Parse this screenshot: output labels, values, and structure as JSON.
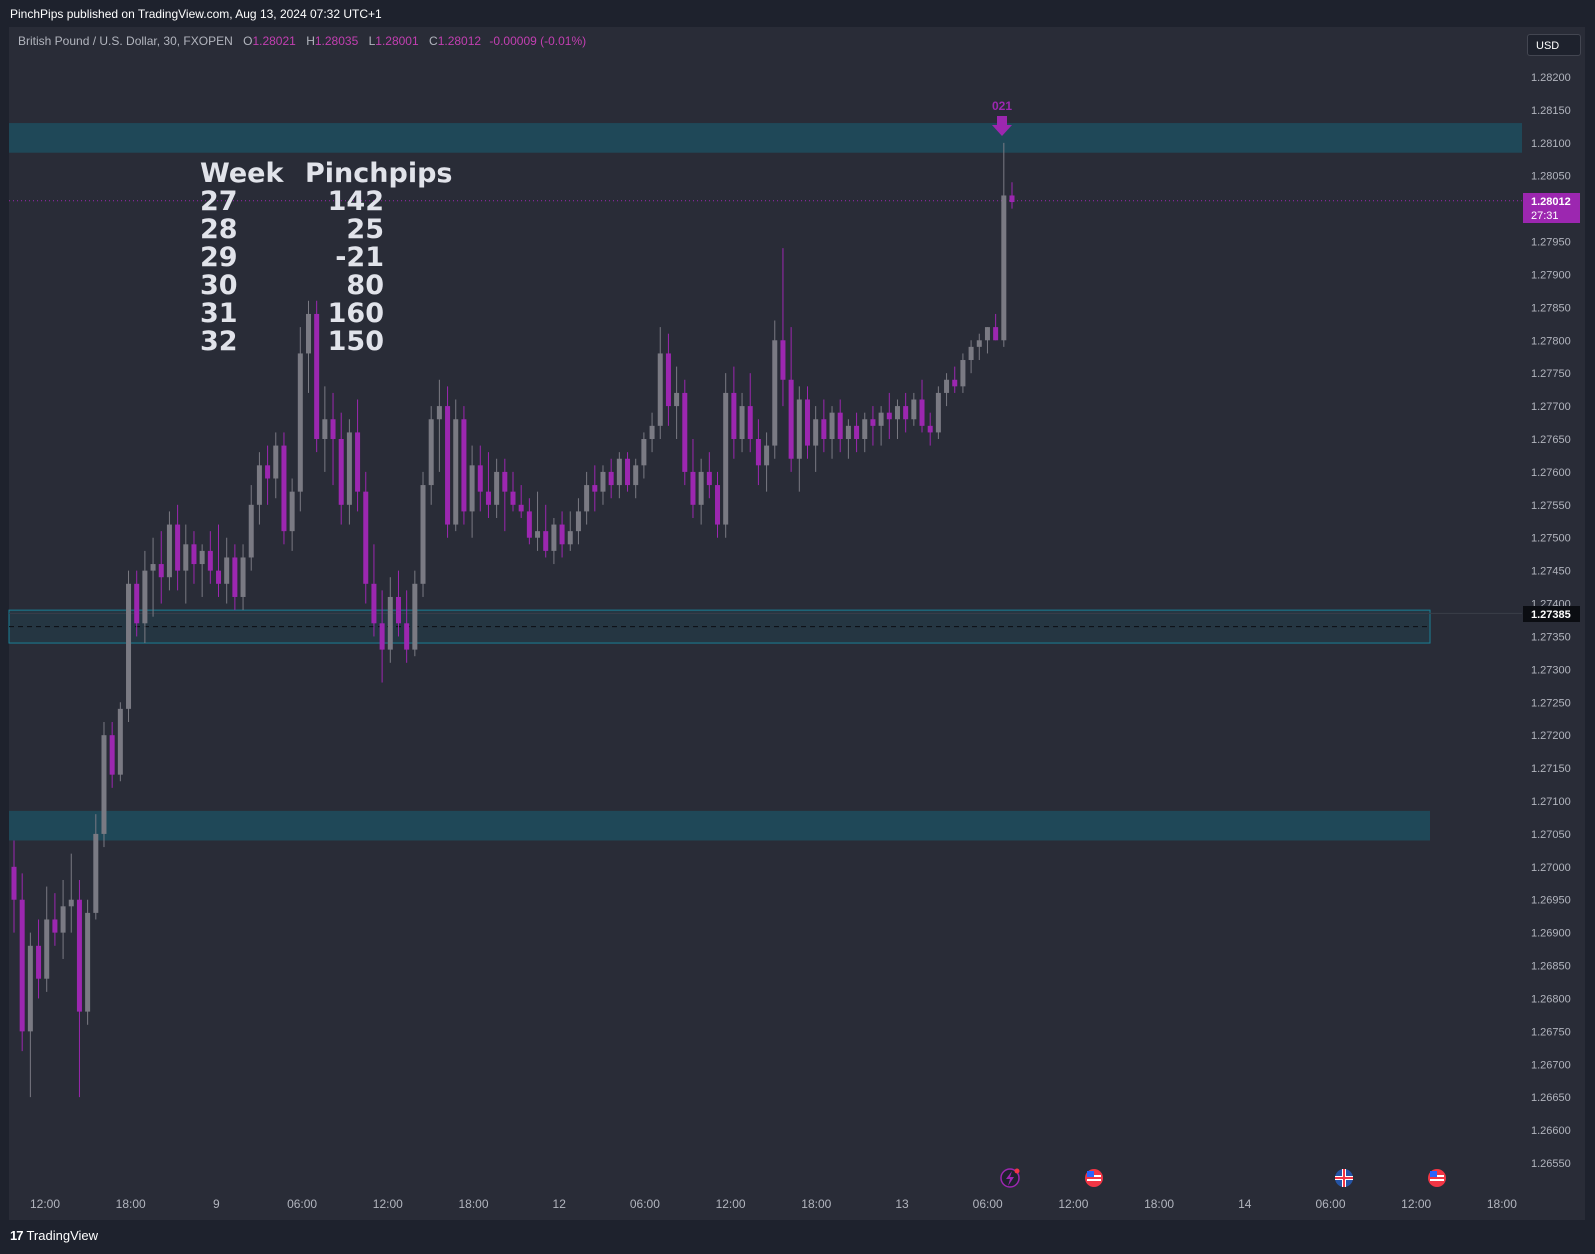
{
  "header": {
    "published": "PinchPips published on TradingView.com, Aug 13, 2024 07:32 UTC+1"
  },
  "legend": {
    "symbol": "British Pound / U.S. Dollar, 30, FXOPEN",
    "open_label": "O",
    "open": "1.28021",
    "high_label": "H",
    "high": "1.28035",
    "low_label": "L",
    "low": "1.28001",
    "close_label": "C",
    "close": "1.28012",
    "change": "-0.00009 (-0.01%)"
  },
  "currency": "USD",
  "table": {
    "headers": [
      "Week",
      "Pinchpips"
    ],
    "rows": [
      [
        "27",
        "142"
      ],
      [
        "28",
        "25"
      ],
      [
        "29",
        "-21"
      ],
      [
        "30",
        "80"
      ],
      [
        "31",
        "160"
      ],
      [
        "32",
        "150"
      ]
    ]
  },
  "marker_label": "021",
  "price_tags": {
    "last": "1.28012",
    "countdown": "27:31",
    "level": "1.27385"
  },
  "footer": {
    "brand": "TradingView"
  },
  "colors": {
    "background": "#292c37",
    "bull": "#7a7a83",
    "bear": "#9c27b0",
    "zone": "#1f4a5a",
    "accent": "#9c27b0"
  },
  "icons": [
    "lightning-event-icon",
    "us-flag-icon",
    "uk-flag-icon",
    "us-flag-icon"
  ],
  "chart_data": {
    "type": "candlestick",
    "title": "British Pound / U.S. Dollar, 30, FXOPEN",
    "ylim": [
      1.2652,
      1.2823
    ],
    "y_ticks": [
      "1.28200",
      "1.28150",
      "1.28100",
      "1.28050",
      "1.27950",
      "1.27900",
      "1.27850",
      "1.27800",
      "1.27750",
      "1.27700",
      "1.27650",
      "1.27600",
      "1.27550",
      "1.27500",
      "1.27450",
      "1.27400",
      "1.27350",
      "1.27300",
      "1.27250",
      "1.27200",
      "1.27150",
      "1.27100",
      "1.27050",
      "1.27000",
      "1.26950",
      "1.26900",
      "1.26850",
      "1.26800",
      "1.26750",
      "1.26700",
      "1.26650",
      "1.26600",
      "1.26550"
    ],
    "x_ticks": [
      "12:00",
      "18:00",
      "9",
      "06:00",
      "12:00",
      "18:00",
      "12",
      "06:00",
      "12:00",
      "18:00",
      "13",
      "06:00",
      "12:00",
      "18:00",
      "14",
      "06:00",
      "12:00",
      "18:00"
    ],
    "zones": [
      {
        "low": 1.28085,
        "high": 1.2813
      },
      {
        "low": 1.2734,
        "high": 1.2739
      },
      {
        "low": 1.2704,
        "high": 1.27085
      }
    ],
    "horizontal_lines": [
      {
        "price": 1.28012,
        "style": "dotted"
      },
      {
        "price": 1.27385,
        "style": "solid"
      },
      {
        "price": 1.27365,
        "style": "dashed"
      }
    ],
    "ohlc": [
      [
        1.27,
        1.2704,
        1.269,
        1.2695
      ],
      [
        1.2695,
        1.2699,
        1.2672,
        1.2675
      ],
      [
        1.2675,
        1.269,
        1.2665,
        1.2688
      ],
      [
        1.2688,
        1.2692,
        1.268,
        1.2683
      ],
      [
        1.2683,
        1.2697,
        1.2681,
        1.2692
      ],
      [
        1.2692,
        1.2696,
        1.2688,
        1.269
      ],
      [
        1.269,
        1.2698,
        1.2686,
        1.2694
      ],
      [
        1.2694,
        1.2702,
        1.269,
        1.2695
      ],
      [
        1.2695,
        1.2698,
        1.2665,
        1.2678
      ],
      [
        1.2678,
        1.2695,
        1.2676,
        1.2693
      ],
      [
        1.2693,
        1.2708,
        1.2692,
        1.2705
      ],
      [
        1.2705,
        1.2722,
        1.2703,
        1.272
      ],
      [
        1.272,
        1.2722,
        1.2712,
        1.2714
      ],
      [
        1.2714,
        1.2725,
        1.2713,
        1.2724
      ],
      [
        1.2724,
        1.2745,
        1.2722,
        1.2743
      ],
      [
        1.2743,
        1.2745,
        1.2735,
        1.2737
      ],
      [
        1.2737,
        1.2748,
        1.2734,
        1.2745
      ],
      [
        1.2745,
        1.275,
        1.2738,
        1.2746
      ],
      [
        1.2746,
        1.2751,
        1.274,
        1.2744
      ],
      [
        1.2744,
        1.2754,
        1.2742,
        1.2752
      ],
      [
        1.2752,
        1.2755,
        1.2742,
        1.2745
      ],
      [
        1.2745,
        1.2752,
        1.274,
        1.2749
      ],
      [
        1.2749,
        1.2751,
        1.2743,
        1.2746
      ],
      [
        1.2746,
        1.2749,
        1.2741,
        1.2748
      ],
      [
        1.2748,
        1.2751,
        1.2743,
        1.2745
      ],
      [
        1.2745,
        1.2752,
        1.2741,
        1.2743
      ],
      [
        1.2743,
        1.275,
        1.274,
        1.2747
      ],
      [
        1.2747,
        1.2749,
        1.2739,
        1.2741
      ],
      [
        1.2741,
        1.2749,
        1.2739,
        1.2747
      ],
      [
        1.2747,
        1.2758,
        1.2745,
        1.2755
      ],
      [
        1.2755,
        1.2763,
        1.2752,
        1.2761
      ],
      [
        1.2761,
        1.2764,
        1.2755,
        1.2759
      ],
      [
        1.2759,
        1.2766,
        1.2756,
        1.2764
      ],
      [
        1.2764,
        1.2766,
        1.2749,
        1.2751
      ],
      [
        1.2751,
        1.2759,
        1.2748,
        1.2757
      ],
      [
        1.2757,
        1.2782,
        1.2754,
        1.2778
      ],
      [
        1.2778,
        1.2786,
        1.2772,
        1.2784
      ],
      [
        1.2784,
        1.2786,
        1.2763,
        1.2765
      ],
      [
        1.2765,
        1.2773,
        1.276,
        1.2768
      ],
      [
        1.2768,
        1.2772,
        1.2758,
        1.2765
      ],
      [
        1.2765,
        1.2769,
        1.2752,
        1.2755
      ],
      [
        1.2755,
        1.2768,
        1.2752,
        1.2766
      ],
      [
        1.2766,
        1.2771,
        1.2754,
        1.2757
      ],
      [
        1.2757,
        1.276,
        1.274,
        1.2743
      ],
      [
        1.2743,
        1.2749,
        1.2735,
        1.2737
      ],
      [
        1.2737,
        1.2742,
        1.2728,
        1.2733
      ],
      [
        1.2733,
        1.2744,
        1.2731,
        1.2741
      ],
      [
        1.2741,
        1.2745,
        1.2735,
        1.2737
      ],
      [
        1.2737,
        1.2742,
        1.2731,
        1.2733
      ],
      [
        1.2733,
        1.2745,
        1.2732,
        1.2743
      ],
      [
        1.2743,
        1.276,
        1.2741,
        1.2758
      ],
      [
        1.2758,
        1.277,
        1.2755,
        1.2768
      ],
      [
        1.2768,
        1.2774,
        1.276,
        1.277
      ],
      [
        1.277,
        1.2773,
        1.275,
        1.2752
      ],
      [
        1.2752,
        1.2771,
        1.2751,
        1.2768
      ],
      [
        1.2768,
        1.277,
        1.2752,
        1.2754
      ],
      [
        1.2754,
        1.2764,
        1.275,
        1.2761
      ],
      [
        1.2761,
        1.2764,
        1.2754,
        1.2757
      ],
      [
        1.2757,
        1.2763,
        1.2753,
        1.2755
      ],
      [
        1.2755,
        1.2762,
        1.2753,
        1.276
      ],
      [
        1.276,
        1.2762,
        1.2751,
        1.2757
      ],
      [
        1.2757,
        1.276,
        1.2754,
        1.2755
      ],
      [
        1.2755,
        1.2758,
        1.2753,
        1.2754
      ],
      [
        1.2754,
        1.2756,
        1.2749,
        1.275
      ],
      [
        1.275,
        1.2757,
        1.2748,
        1.2751
      ],
      [
        1.2751,
        1.2755,
        1.2747,
        1.2748
      ],
      [
        1.2748,
        1.2753,
        1.2746,
        1.2752
      ],
      [
        1.2752,
        1.2754,
        1.2747,
        1.2749
      ],
      [
        1.2749,
        1.2754,
        1.2748,
        1.2751
      ],
      [
        1.2751,
        1.2756,
        1.2749,
        1.2754
      ],
      [
        1.2754,
        1.276,
        1.2752,
        1.2758
      ],
      [
        1.2758,
        1.2761,
        1.2754,
        1.2757
      ],
      [
        1.2757,
        1.2761,
        1.2755,
        1.276
      ],
      [
        1.276,
        1.2762,
        1.2756,
        1.2758
      ],
      [
        1.2758,
        1.2763,
        1.2756,
        1.2762
      ],
      [
        1.2762,
        1.2763,
        1.2757,
        1.2758
      ],
      [
        1.2758,
        1.2762,
        1.2756,
        1.2761
      ],
      [
        1.2761,
        1.2766,
        1.2759,
        1.2765
      ],
      [
        1.2765,
        1.2769,
        1.2763,
        1.2767
      ],
      [
        1.2767,
        1.2782,
        1.2765,
        1.2778
      ],
      [
        1.2778,
        1.2781,
        1.2767,
        1.277
      ],
      [
        1.277,
        1.2776,
        1.2765,
        1.2772
      ],
      [
        1.2772,
        1.2774,
        1.2758,
        1.276
      ],
      [
        1.276,
        1.2765,
        1.2753,
        1.2755
      ],
      [
        1.2755,
        1.2762,
        1.2752,
        1.276
      ],
      [
        1.276,
        1.2763,
        1.2756,
        1.2758
      ],
      [
        1.2758,
        1.276,
        1.275,
        1.2752
      ],
      [
        1.2752,
        1.2775,
        1.275,
        1.2772
      ],
      [
        1.2772,
        1.2776,
        1.2762,
        1.2765
      ],
      [
        1.2765,
        1.2772,
        1.2763,
        1.277
      ],
      [
        1.277,
        1.2775,
        1.2763,
        1.2765
      ],
      [
        1.2765,
        1.2768,
        1.2758,
        1.2761
      ],
      [
        1.2761,
        1.2766,
        1.2757,
        1.2764
      ],
      [
        1.2764,
        1.2783,
        1.2762,
        1.278
      ],
      [
        1.278,
        1.2794,
        1.277,
        1.2774
      ],
      [
        1.2774,
        1.2782,
        1.276,
        1.2762
      ],
      [
        1.2762,
        1.2773,
        1.2757,
        1.2771
      ],
      [
        1.2771,
        1.2773,
        1.2762,
        1.2764
      ],
      [
        1.2764,
        1.277,
        1.276,
        1.2768
      ],
      [
        1.2768,
        1.2771,
        1.2763,
        1.2765
      ],
      [
        1.2765,
        1.277,
        1.2762,
        1.2769
      ],
      [
        1.2769,
        1.2771,
        1.2763,
        1.2765
      ],
      [
        1.2765,
        1.2768,
        1.2762,
        1.2767
      ],
      [
        1.2767,
        1.2769,
        1.2763,
        1.2765
      ],
      [
        1.2765,
        1.2769,
        1.2763,
        1.2768
      ],
      [
        1.2768,
        1.277,
        1.2764,
        1.2767
      ],
      [
        1.2767,
        1.277,
        1.2764,
        1.2769
      ],
      [
        1.2769,
        1.2772,
        1.2765,
        1.2768
      ],
      [
        1.2768,
        1.2771,
        1.2765,
        1.277
      ],
      [
        1.277,
        1.2772,
        1.2766,
        1.2768
      ],
      [
        1.2768,
        1.2772,
        1.2767,
        1.2771
      ],
      [
        1.2771,
        1.2774,
        1.2766,
        1.2767
      ],
      [
        1.2767,
        1.2769,
        1.2764,
        1.2766
      ],
      [
        1.2766,
        1.2773,
        1.2765,
        1.2772
      ],
      [
        1.2772,
        1.2775,
        1.277,
        1.2774
      ],
      [
        1.2774,
        1.2776,
        1.2772,
        1.2773
      ],
      [
        1.2773,
        1.2778,
        1.2772,
        1.2777
      ],
      [
        1.2777,
        1.278,
        1.2775,
        1.2779
      ],
      [
        1.2779,
        1.2781,
        1.2777,
        1.278
      ],
      [
        1.278,
        1.2782,
        1.2778,
        1.2782
      ],
      [
        1.2782,
        1.2784,
        1.278,
        1.278
      ],
      [
        1.278,
        1.281,
        1.2779,
        1.2802
      ],
      [
        1.2802,
        1.2804,
        1.28,
        1.2801
      ]
    ]
  }
}
